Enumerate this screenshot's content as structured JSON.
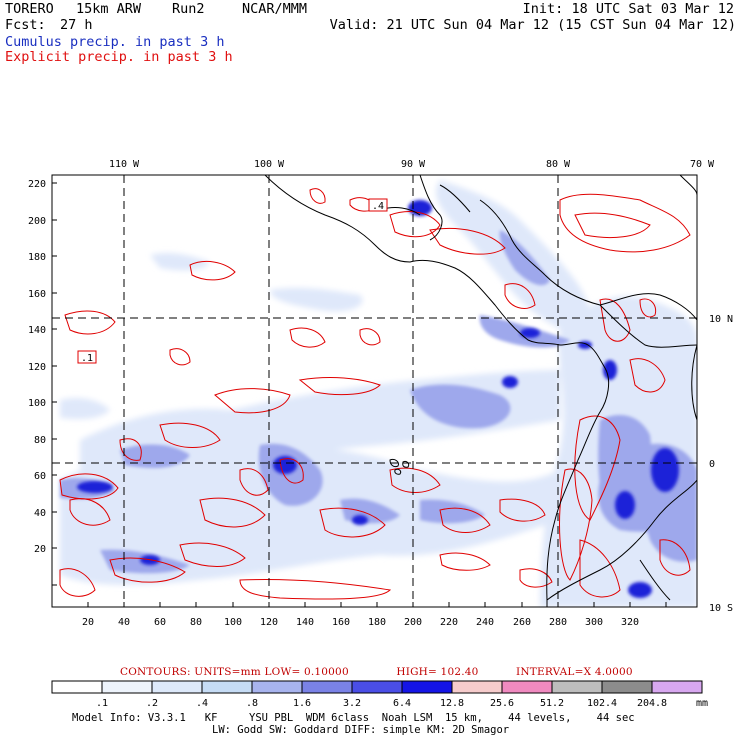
{
  "header": {
    "model": "TORERO",
    "resolution": "15km ARW",
    "run": "Run2",
    "org": "NCAR/MMM",
    "init": "Init: 18 UTC Sat 03 Mar 12",
    "fcst_label": "Fcst:",
    "fcst_value": "27 h",
    "valid": "Valid: 21 UTC Sun 04 Mar 12 (15 CST Sun 04 Mar 12)",
    "line_blue": "Cumulus precip. in past 3 h",
    "line_red": "Explicit precip. in past 3 h"
  },
  "map": {
    "top_lon_labels": [
      "110 W",
      "100 W",
      "90 W",
      "80 W",
      "70 W"
    ],
    "right_lat_labels": [
      "10 N",
      "0",
      "10 S"
    ],
    "y_ticks": [
      "220",
      "200",
      "180",
      "160",
      "140",
      "120",
      "100",
      "80",
      "60",
      "40",
      "20"
    ],
    "x_ticks": [
      "20",
      "40",
      "60",
      "80",
      "100",
      "120",
      "140",
      "160",
      "180",
      "200",
      "220",
      "240",
      "260",
      "280",
      "300",
      "320"
    ],
    "contour_boxes": [
      ".1",
      ".4"
    ],
    "colors": {
      "cumulus": "#2828e0",
      "explicit": "#e00000",
      "coast": "#000000"
    }
  },
  "contour_info": {
    "units": "CONTOURS:  UNITS=mm  LOW= 0.10000",
    "high": "HIGH=  102.40",
    "interval": "INTERVAL=X  4.0000"
  },
  "legend": {
    "labels": [
      ".1",
      ".2",
      ".4",
      ".8",
      "1.6",
      "3.2",
      "6.4",
      "12.8",
      "25.6",
      "51.2",
      "102.4",
      "204.8"
    ],
    "unit": "mm",
    "colors": [
      "#ffffff",
      "#eef4fc",
      "#dde9fa",
      "#c6dcf5",
      "#a8b4ee",
      "#7a82e6",
      "#4a4ee6",
      "#1414e6",
      "#f6cccc",
      "#f08ac0",
      "#bdbdbd",
      "#8c8c8c",
      "#d8a8f0"
    ]
  },
  "footer": {
    "line1": "Model Info: V3.3.1   KF     YSU PBL  WDM 6class  Noah LSM  15 km,    44 levels,    44 sec",
    "line2": "LW: Godd SW: Goddard DIFF: simple KM: 2D Smagor"
  }
}
